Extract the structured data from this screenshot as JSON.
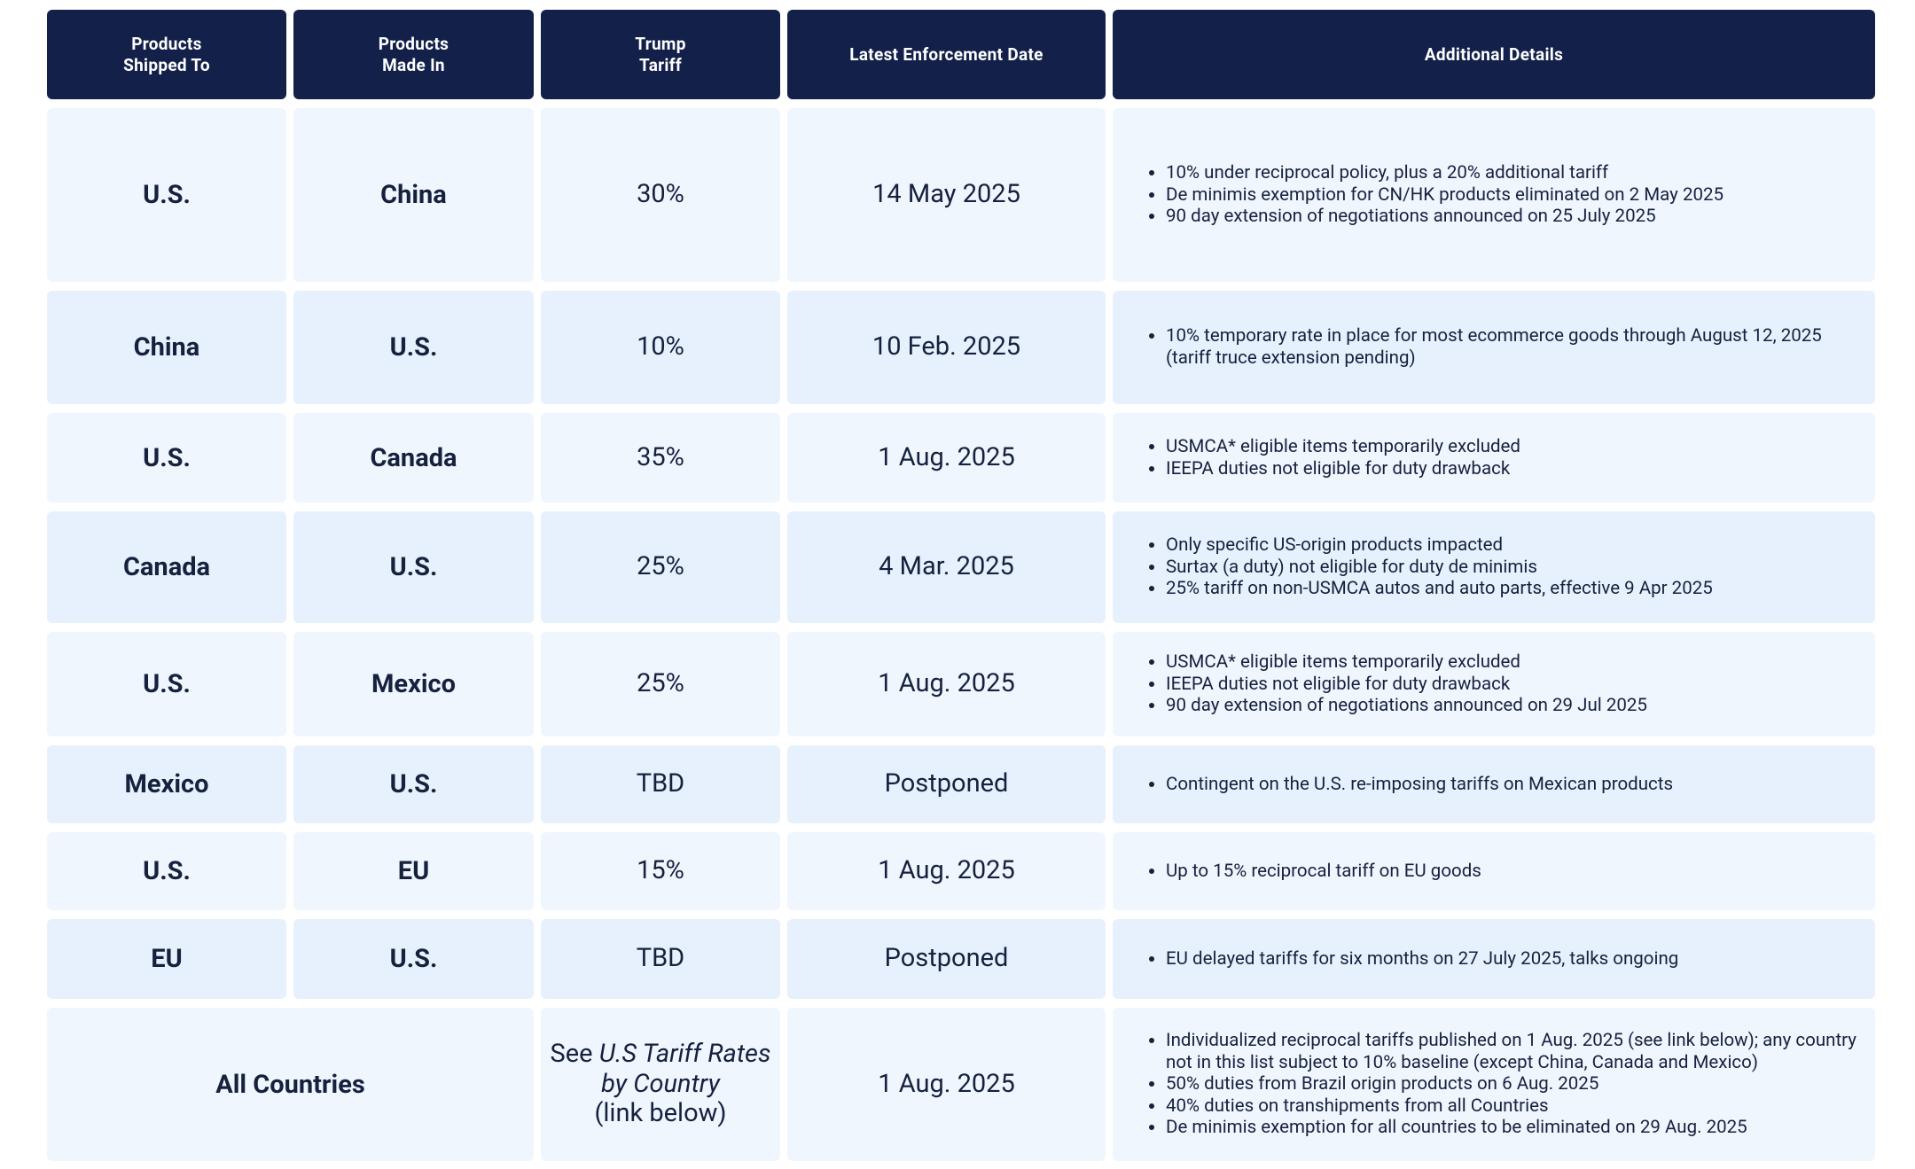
{
  "header": {
    "columns": [
      "Products\nShipped To",
      "Products\nMade In",
      "Trump\nTariff",
      "Latest Enforcement Date",
      "Additional Details"
    ]
  },
  "rows": [
    {
      "shipped_to": "U.S.",
      "made_in": "China",
      "tariff": "30%",
      "date": "14 May 2025",
      "details": [
        "10% under reciprocal policy, plus a 20% additional tariff",
        "De minimis exemption for CN/HK products eliminated on 2 May 2025",
        "90 day extension of negotiations announced on 25 July 2025"
      ]
    },
    {
      "shipped_to": "China",
      "made_in": "U.S.",
      "tariff": "10%",
      "date": "10 Feb. 2025",
      "details": [
        "10% temporary rate in place for most ecommerce goods through August 12, 2025 (tariff truce extension pending)"
      ]
    },
    {
      "shipped_to": "U.S.",
      "made_in": "Canada",
      "tariff": "35%",
      "date": "1 Aug. 2025",
      "details": [
        "USMCA* eligible items temporarily excluded",
        "IEEPA duties not eligible for duty drawback"
      ]
    },
    {
      "shipped_to": "Canada",
      "made_in": "U.S.",
      "tariff": "25%",
      "date": "4 Mar. 2025",
      "details": [
        "Only specific US-origin products impacted",
        "Surtax (a duty) not eligible for duty de minimis",
        "25% tariff on non-USMCA autos and auto parts, effective 9 Apr 2025"
      ]
    },
    {
      "shipped_to": "U.S.",
      "made_in": "Mexico",
      "tariff": "25%",
      "date": "1 Aug. 2025",
      "details": [
        "USMCA* eligible items temporarily excluded",
        "IEEPA duties not eligible for duty drawback",
        "90 day extension of negotiations announced on 29 Jul 2025"
      ]
    },
    {
      "shipped_to": "Mexico",
      "made_in": "U.S.",
      "tariff": "TBD",
      "date": "Postponed",
      "details": [
        "Contingent on the U.S. re-imposing tariffs on Mexican products"
      ]
    },
    {
      "shipped_to": "U.S.",
      "made_in": "EU",
      "tariff": "15%",
      "date": "1 Aug. 2025",
      "details": [
        "Up to 15% reciprocal tariff on EU goods"
      ]
    },
    {
      "shipped_to": "EU",
      "made_in": "U.S.",
      "tariff": "TBD",
      "date": "Postponed",
      "details": [
        "EU delayed tariffs for six months on 27 July 2025, talks ongoing"
      ]
    }
  ],
  "summary_row": {
    "countries": "All Countries",
    "tariff_prefix": "See",
    "tariff_link": "U.S Tariff Rates by Country",
    "tariff_suffix": "(link below)",
    "date": "1 Aug. 2025",
    "details": [
      "Individualized reciprocal tariffs published on 1 Aug. 2025 (see link below); any country not in this list subject to 10% baseline (except China, Canada and Mexico)",
      "50% duties from Brazil origin products on 6 Aug. 2025",
      "40% duties on transhipments from all Countries",
      "De minimis exemption for all countries to be eliminated on 29 Aug. 2025"
    ]
  }
}
